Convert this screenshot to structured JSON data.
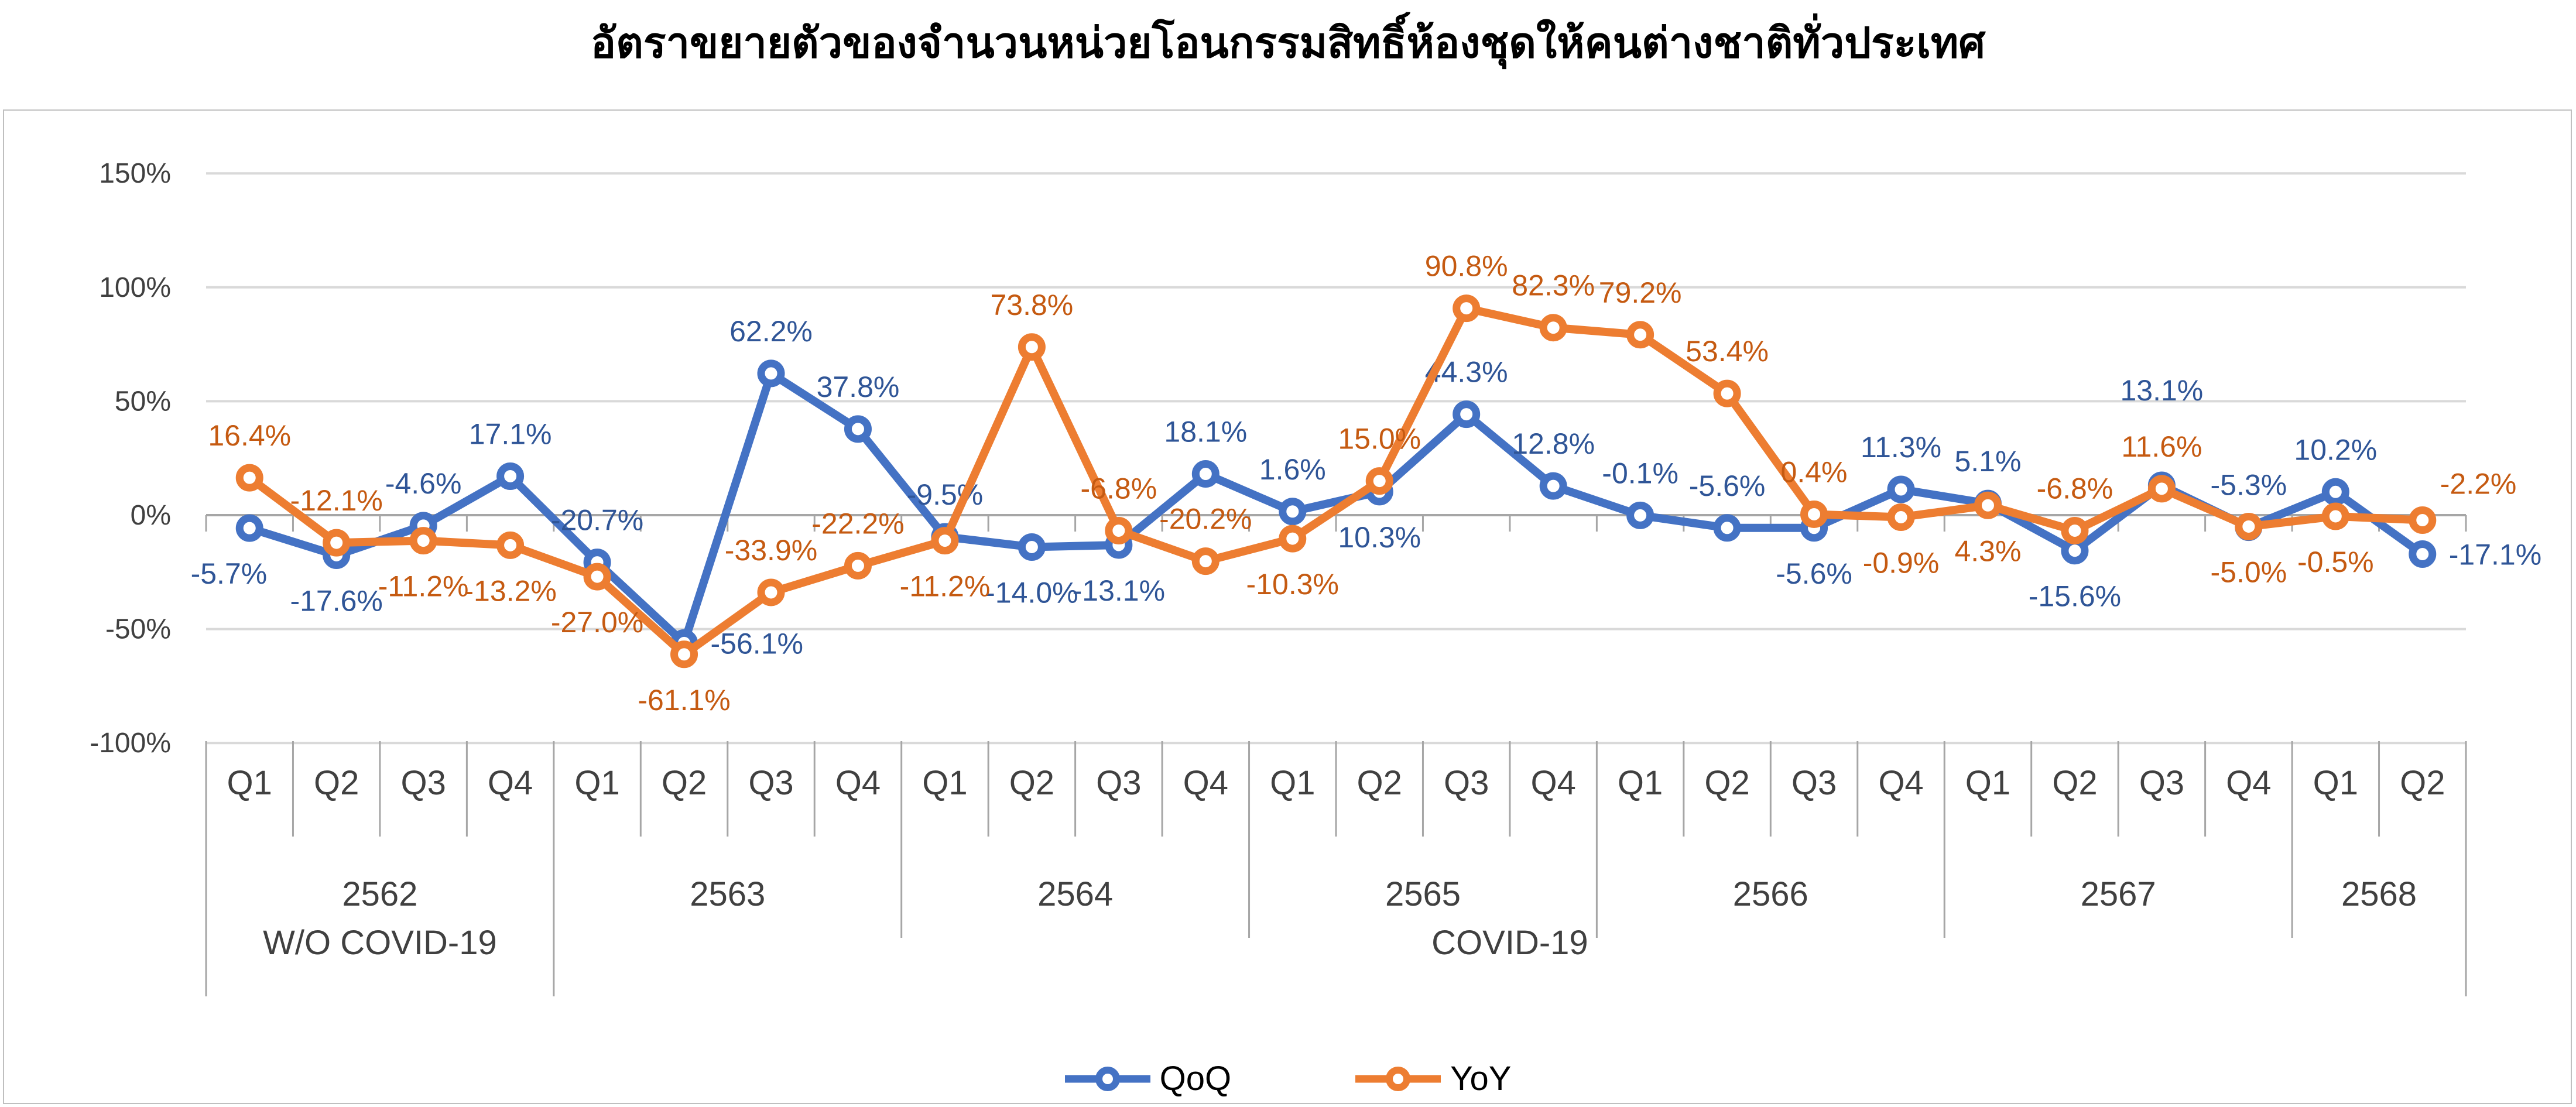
{
  "title": "อัตราขยายตัวของจำนวนหน่วยโอนกรรมสิทธิ์ห้องชุดให้คนต่างชาติทั่วประเทศ",
  "y_axis": {
    "tick_labels": [
      "150%",
      "100%",
      "50%",
      "0%",
      "-50%",
      "-100%"
    ],
    "tick_values": [
      150,
      100,
      50,
      0,
      -50,
      -100
    ]
  },
  "x_axis": {
    "quarters": [
      "Q1",
      "Q2",
      "Q3",
      "Q4",
      "Q1",
      "Q2",
      "Q3",
      "Q4",
      "Q1",
      "Q2",
      "Q3",
      "Q4",
      "Q1",
      "Q2",
      "Q3",
      "Q4",
      "Q1",
      "Q2",
      "Q3",
      "Q4",
      "Q1",
      "Q2",
      "Q3",
      "Q4",
      "Q1",
      "Q2"
    ],
    "year_groups": [
      {
        "label": "2562",
        "span": 4
      },
      {
        "label": "2563",
        "span": 4
      },
      {
        "label": "2564",
        "span": 4
      },
      {
        "label": "2565",
        "span": 4
      },
      {
        "label": "2566",
        "span": 4
      },
      {
        "label": "2567",
        "span": 4
      },
      {
        "label": "2568",
        "span": 2
      }
    ],
    "period_groups": [
      {
        "label": "W/O COVID-19",
        "span": 4
      },
      {
        "label": "COVID-19",
        "span": 22
      }
    ]
  },
  "legend": [
    {
      "label": "QoQ",
      "color": "#4472C4"
    },
    {
      "label": "YoY",
      "color": "#ED7D31"
    }
  ],
  "chart_data": {
    "type": "line",
    "title": "อัตราขยายตัวของจำนวนหน่วยโอนกรรมสิทธิ์ห้องชุดให้คนต่างชาติทั่วประเทศ",
    "categories": [
      "Q1 2562",
      "Q2 2562",
      "Q3 2562",
      "Q4 2562",
      "Q1 2563",
      "Q2 2563",
      "Q3 2563",
      "Q4 2563",
      "Q1 2564",
      "Q2 2564",
      "Q3 2564",
      "Q4 2564",
      "Q1 2565",
      "Q2 2565",
      "Q3 2565",
      "Q4 2565",
      "Q1 2566",
      "Q2 2566",
      "Q3 2566",
      "Q4 2566",
      "Q1 2567",
      "Q2 2567",
      "Q3 2567",
      "Q4 2567",
      "Q1 2568",
      "Q2 2568"
    ],
    "ylim": [
      -100,
      150
    ],
    "grid": true,
    "legend_position": "bottom",
    "series": [
      {
        "name": "QoQ",
        "color": "#4472C4",
        "label_color": "#2F5597",
        "values": [
          -5.7,
          -17.6,
          -4.6,
          17.1,
          -20.7,
          -56.1,
          62.2,
          37.8,
          -9.5,
          -14.0,
          -13.1,
          18.1,
          1.6,
          10.3,
          44.3,
          12.8,
          -0.1,
          -5.6,
          -5.6,
          11.3,
          5.1,
          -15.6,
          13.1,
          -5.3,
          10.2,
          -17.1
        ],
        "label_pos": [
          "below-left",
          "below",
          "above",
          "above",
          "above",
          "right",
          "above",
          "above",
          "above",
          "below",
          "below",
          "above",
          "above",
          "below",
          "above",
          "above",
          "above",
          "above",
          "below",
          "above",
          "above",
          "below",
          "above2",
          "above",
          "above",
          "right"
        ]
      },
      {
        "name": "YoY",
        "color": "#ED7D31",
        "label_color": "#C55A11",
        "values": [
          16.4,
          -12.1,
          -11.2,
          -13.2,
          -27.0,
          -61.1,
          -33.9,
          -22.2,
          -11.2,
          73.8,
          -6.8,
          -20.2,
          -10.3,
          15.0,
          90.8,
          82.3,
          79.2,
          53.4,
          0.4,
          -0.9,
          4.3,
          -6.8,
          11.6,
          -5.0,
          -0.5,
          -2.2
        ],
        "label_pos": [
          "above",
          "above",
          "below",
          "below",
          "below",
          "below",
          "above",
          "above",
          "below",
          "above",
          "above",
          "above",
          "below",
          "above",
          "above",
          "above",
          "above",
          "above",
          "above",
          "below",
          "below",
          "above",
          "above",
          "below",
          "below",
          "above-right"
        ]
      }
    ]
  },
  "colors": {
    "gridline": "#D9D9D9",
    "axis_line": "#A6A6A6",
    "axis_text": "#404040",
    "border": "#BFBFBF"
  }
}
